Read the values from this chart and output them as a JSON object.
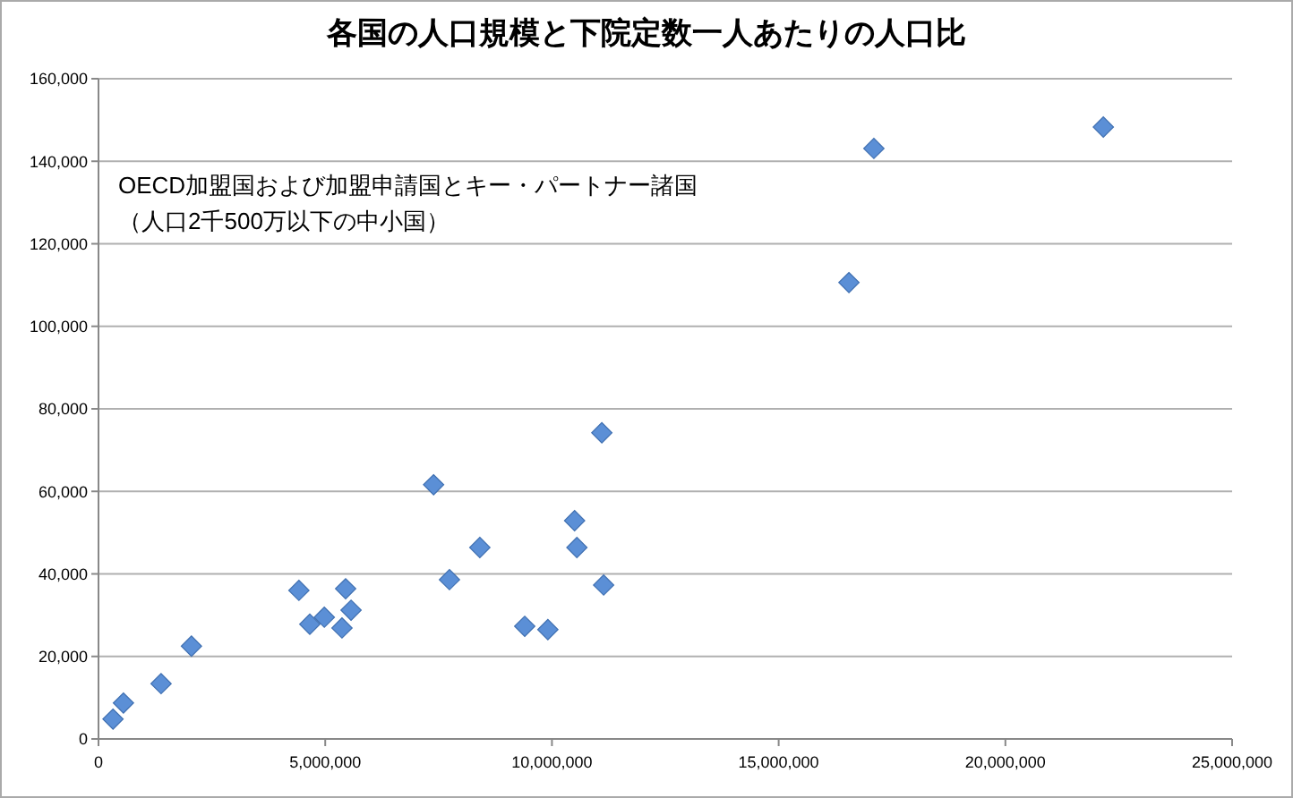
{
  "chart_data": {
    "type": "scatter",
    "title": "各国の人口規模と下院定数一人あたりの人口比",
    "annotations": [
      "OECD加盟国および加盟申請国とキー・パートナー諸国",
      "（人口2千500万以下の中小国）"
    ],
    "x": [
      320000,
      550000,
      1380000,
      2050000,
      4420000,
      4660000,
      4980000,
      5370000,
      5450000,
      5570000,
      7390000,
      7740000,
      8410000,
      9400000,
      9910000,
      10500000,
      10550000,
      11100000,
      11140000,
      16550000,
      17100000,
      22160000
    ],
    "values": [
      4800,
      8700,
      13400,
      22500,
      36000,
      27800,
      29500,
      26900,
      36400,
      31200,
      61600,
      38600,
      46400,
      27300,
      26500,
      52900,
      46400,
      74200,
      37300,
      110600,
      143100,
      148300
    ],
    "color": "#5b8fd6",
    "marker": "diamond",
    "xlim": [
      0,
      25000000
    ],
    "xticks": [
      {
        "value": 0,
        "label": "0"
      },
      {
        "value": 5000000,
        "label": "5,000,000"
      },
      {
        "value": 10000000,
        "label": "10,000,000"
      },
      {
        "value": 15000000,
        "label": "15,000,000"
      },
      {
        "value": 20000000,
        "label": "20,000,000"
      },
      {
        "value": 25000000,
        "label": "25,000,000"
      }
    ],
    "ylim": [
      0,
      160000
    ],
    "yticks": [
      {
        "value": 0,
        "label": "0"
      },
      {
        "value": 20000,
        "label": "20,000"
      },
      {
        "value": 40000,
        "label": "40,000"
      },
      {
        "value": 60000,
        "label": "60,000"
      },
      {
        "value": 80000,
        "label": "80,000"
      },
      {
        "value": 100000,
        "label": "100,000"
      },
      {
        "value": 120000,
        "label": "120,000"
      },
      {
        "value": 140000,
        "label": "140,000"
      },
      {
        "value": 160000,
        "label": "160,000"
      }
    ],
    "grid": "y"
  }
}
